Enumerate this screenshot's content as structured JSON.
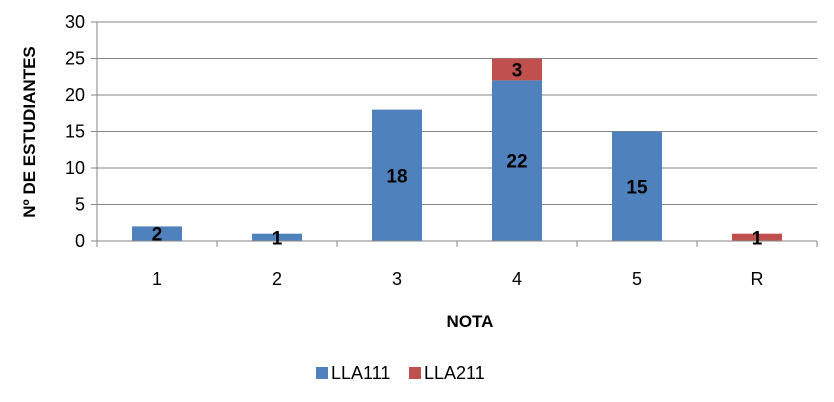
{
  "chart_data": {
    "type": "bar",
    "stacked": true,
    "categories": [
      "1",
      "2",
      "3",
      "4",
      "5",
      "R"
    ],
    "series": [
      {
        "name": "LLA111",
        "color": "#4f81bd",
        "values": [
          2,
          1,
          18,
          22,
          15,
          0
        ],
        "labels": [
          "2",
          "1",
          "18",
          "22",
          "15",
          ""
        ]
      },
      {
        "name": "LLA211",
        "color": "#c0504d",
        "values": [
          0,
          0,
          0,
          3,
          0,
          1
        ],
        "labels": [
          "",
          "",
          "",
          "3",
          "",
          "1"
        ]
      }
    ],
    "xlabel": "NOTA",
    "ylabel": "Nº DE ESTUDIANTES",
    "ylim": [
      0,
      30
    ],
    "yticks": [
      "0",
      "5",
      "10",
      "15",
      "20",
      "25",
      "30"
    ],
    "grid": true,
    "legend_position": "bottom"
  }
}
